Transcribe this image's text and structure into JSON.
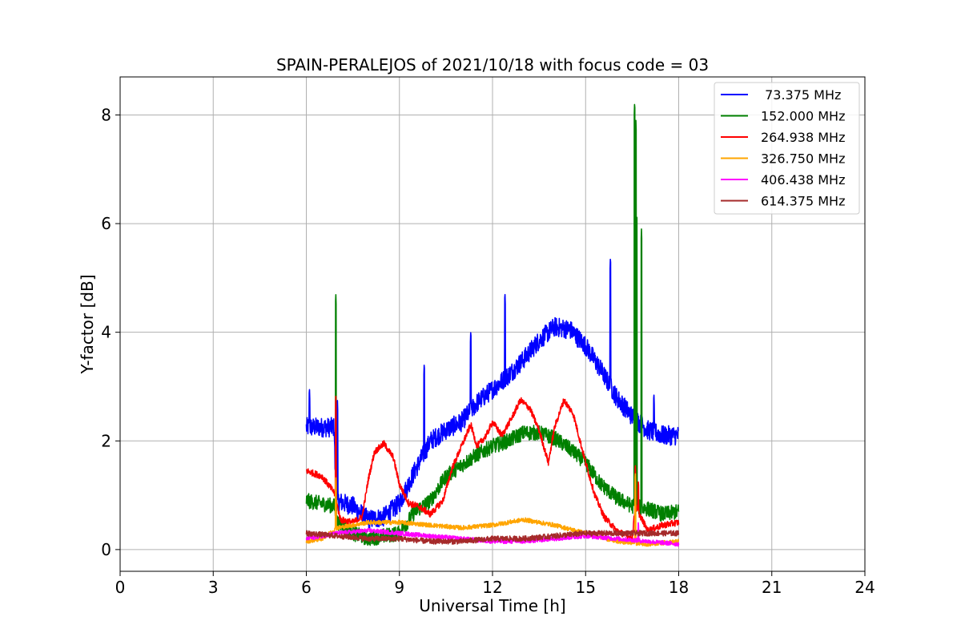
{
  "chart_data": {
    "type": "line",
    "title": "SPAIN-PERALEJOS of 2021/10/18 with focus code = 03",
    "xlabel": "Universal Time [h]",
    "ylabel": "Y-factor [dB]",
    "xlim": [
      0,
      24
    ],
    "ylim": [
      -0.4,
      8.7
    ],
    "xticks": [
      0,
      3,
      6,
      9,
      12,
      15,
      18,
      21,
      24
    ],
    "yticks": [
      0,
      2,
      4,
      6,
      8
    ],
    "grid": true,
    "legend_position": "top-right",
    "series": [
      {
        "name": " 73.375 MHz",
        "color": "#0000ff",
        "noise": 0.18,
        "points": [
          [
            6.0,
            2.25
          ],
          [
            6.9,
            2.25
          ],
          [
            6.95,
            0.9
          ],
          [
            7.5,
            0.8
          ],
          [
            8.0,
            0.55
          ],
          [
            8.5,
            0.6
          ],
          [
            9.0,
            0.85
          ],
          [
            9.5,
            1.45
          ],
          [
            10.0,
            2.0
          ],
          [
            10.5,
            2.2
          ],
          [
            11.0,
            2.35
          ],
          [
            11.5,
            2.7
          ],
          [
            12.0,
            2.95
          ],
          [
            12.5,
            3.2
          ],
          [
            13.0,
            3.5
          ],
          [
            13.5,
            3.85
          ],
          [
            14.0,
            4.1
          ],
          [
            14.5,
            4.05
          ],
          [
            15.0,
            3.75
          ],
          [
            15.5,
            3.3
          ],
          [
            16.0,
            2.8
          ],
          [
            16.5,
            2.45
          ],
          [
            17.0,
            2.2
          ],
          [
            17.5,
            2.1
          ],
          [
            18.0,
            2.1
          ]
        ],
        "spikes": [
          [
            6.1,
            3.0
          ],
          [
            7.0,
            2.8
          ],
          [
            9.8,
            3.45
          ],
          [
            11.3,
            4.05
          ],
          [
            12.4,
            4.75
          ],
          [
            15.8,
            5.4
          ],
          [
            16.6,
            3.9
          ],
          [
            17.2,
            2.9
          ]
        ]
      },
      {
        "name": "152.000 MHz",
        "color": "#008000",
        "noise": 0.14,
        "points": [
          [
            6.0,
            0.9
          ],
          [
            6.9,
            0.8
          ],
          [
            7.0,
            0.5
          ],
          [
            7.5,
            0.3
          ],
          [
            8.0,
            0.2
          ],
          [
            8.5,
            0.25
          ],
          [
            9.0,
            0.3
          ],
          [
            9.5,
            0.7
          ],
          [
            10.0,
            0.9
          ],
          [
            10.5,
            1.35
          ],
          [
            11.0,
            1.55
          ],
          [
            11.5,
            1.75
          ],
          [
            12.0,
            1.9
          ],
          [
            12.5,
            2.0
          ],
          [
            13.0,
            2.15
          ],
          [
            13.5,
            2.15
          ],
          [
            14.0,
            2.05
          ],
          [
            14.5,
            1.85
          ],
          [
            15.0,
            1.6
          ],
          [
            15.5,
            1.2
          ],
          [
            16.0,
            0.95
          ],
          [
            16.5,
            0.8
          ],
          [
            17.0,
            0.75
          ],
          [
            17.5,
            0.65
          ],
          [
            18.0,
            0.7
          ]
        ],
        "spikes": [
          [
            6.95,
            4.72
          ],
          [
            16.58,
            8.25
          ],
          [
            16.62,
            7.9
          ],
          [
            16.65,
            6.2
          ],
          [
            16.8,
            5.9
          ]
        ]
      },
      {
        "name": "264.938 MHz",
        "color": "#ff0000",
        "noise": 0.06,
        "points": [
          [
            6.0,
            1.45
          ],
          [
            6.5,
            1.35
          ],
          [
            6.9,
            1.05
          ],
          [
            7.1,
            0.55
          ],
          [
            7.5,
            0.5
          ],
          [
            7.8,
            0.6
          ],
          [
            8.0,
            1.3
          ],
          [
            8.2,
            1.8
          ],
          [
            8.5,
            1.95
          ],
          [
            8.8,
            1.7
          ],
          [
            9.0,
            1.2
          ],
          [
            9.3,
            0.85
          ],
          [
            9.6,
            0.8
          ],
          [
            10.0,
            0.65
          ],
          [
            10.4,
            0.9
          ],
          [
            10.7,
            1.5
          ],
          [
            11.0,
            1.9
          ],
          [
            11.3,
            2.3
          ],
          [
            11.5,
            1.9
          ],
          [
            11.8,
            2.1
          ],
          [
            12.0,
            2.35
          ],
          [
            12.3,
            2.1
          ],
          [
            12.6,
            2.4
          ],
          [
            12.9,
            2.75
          ],
          [
            13.2,
            2.6
          ],
          [
            13.5,
            2.2
          ],
          [
            13.8,
            1.6
          ],
          [
            14.0,
            2.25
          ],
          [
            14.3,
            2.75
          ],
          [
            14.6,
            2.5
          ],
          [
            15.0,
            1.6
          ],
          [
            15.3,
            1.0
          ],
          [
            15.6,
            0.6
          ],
          [
            16.0,
            0.35
          ],
          [
            16.5,
            0.2
          ],
          [
            16.6,
            0.8
          ],
          [
            17.0,
            0.35
          ],
          [
            17.5,
            0.45
          ],
          [
            18.0,
            0.5
          ]
        ],
        "spikes": [
          [
            6.95,
            2.85
          ],
          [
            16.6,
            1.6
          ],
          [
            16.7,
            1.3
          ]
        ]
      },
      {
        "name": "326.750 MHz",
        "color": "#ffa500",
        "noise": 0.04,
        "points": [
          [
            6.0,
            0.15
          ],
          [
            6.5,
            0.2
          ],
          [
            7.0,
            0.4
          ],
          [
            8.0,
            0.5
          ],
          [
            9.0,
            0.5
          ],
          [
            10.0,
            0.45
          ],
          [
            11.0,
            0.4
          ],
          [
            12.0,
            0.45
          ],
          [
            13.0,
            0.55
          ],
          [
            14.0,
            0.45
          ],
          [
            15.0,
            0.3
          ],
          [
            16.0,
            0.15
          ],
          [
            17.0,
            0.1
          ],
          [
            18.0,
            0.15
          ]
        ],
        "spikes": [
          [
            6.95,
            1.35
          ],
          [
            16.6,
            1.45
          ]
        ]
      },
      {
        "name": "406.438 MHz",
        "color": "#ff00ff",
        "noise": 0.04,
        "points": [
          [
            6.0,
            0.2
          ],
          [
            7.0,
            0.3
          ],
          [
            8.0,
            0.35
          ],
          [
            9.0,
            0.3
          ],
          [
            10.0,
            0.25
          ],
          [
            11.0,
            0.2
          ],
          [
            12.0,
            0.15
          ],
          [
            13.0,
            0.15
          ],
          [
            14.0,
            0.2
          ],
          [
            15.0,
            0.25
          ],
          [
            16.0,
            0.2
          ],
          [
            17.0,
            0.15
          ],
          [
            18.0,
            0.1
          ]
        ],
        "spikes": [
          [
            16.7,
            0.55
          ]
        ]
      },
      {
        "name": "614.375 MHz",
        "color": "#a52a2a",
        "noise": 0.05,
        "points": [
          [
            6.0,
            0.3
          ],
          [
            7.0,
            0.25
          ],
          [
            8.0,
            0.2
          ],
          [
            9.0,
            0.2
          ],
          [
            10.0,
            0.15
          ],
          [
            11.0,
            0.15
          ],
          [
            12.0,
            0.2
          ],
          [
            13.0,
            0.2
          ],
          [
            14.0,
            0.25
          ],
          [
            15.0,
            0.3
          ],
          [
            16.0,
            0.3
          ],
          [
            17.0,
            0.3
          ],
          [
            18.0,
            0.3
          ]
        ],
        "spikes": []
      }
    ]
  }
}
